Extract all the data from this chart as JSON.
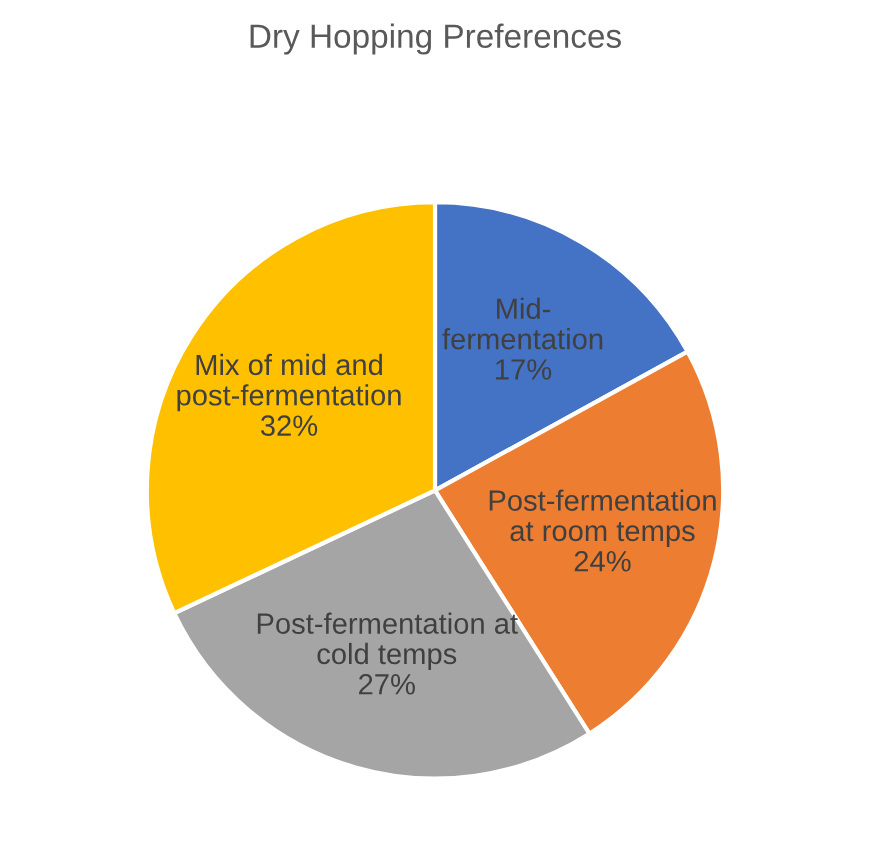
{
  "chart_data": {
    "type": "pie",
    "title": "Dry Hopping Preferences",
    "categories": [
      "Mid-fermentation",
      "Post-fermentation at room temps",
      "Post-fermentation at cold temps",
      "Mix of mid and post-fermentation"
    ],
    "values": [
      17,
      24,
      27,
      32
    ],
    "value_labels": [
      "17%",
      "24%",
      "27%",
      "32%"
    ],
    "colors": [
      "#4472c4",
      "#ed7d31",
      "#a5a5a5",
      "#ffc000"
    ],
    "legend": false
  }
}
